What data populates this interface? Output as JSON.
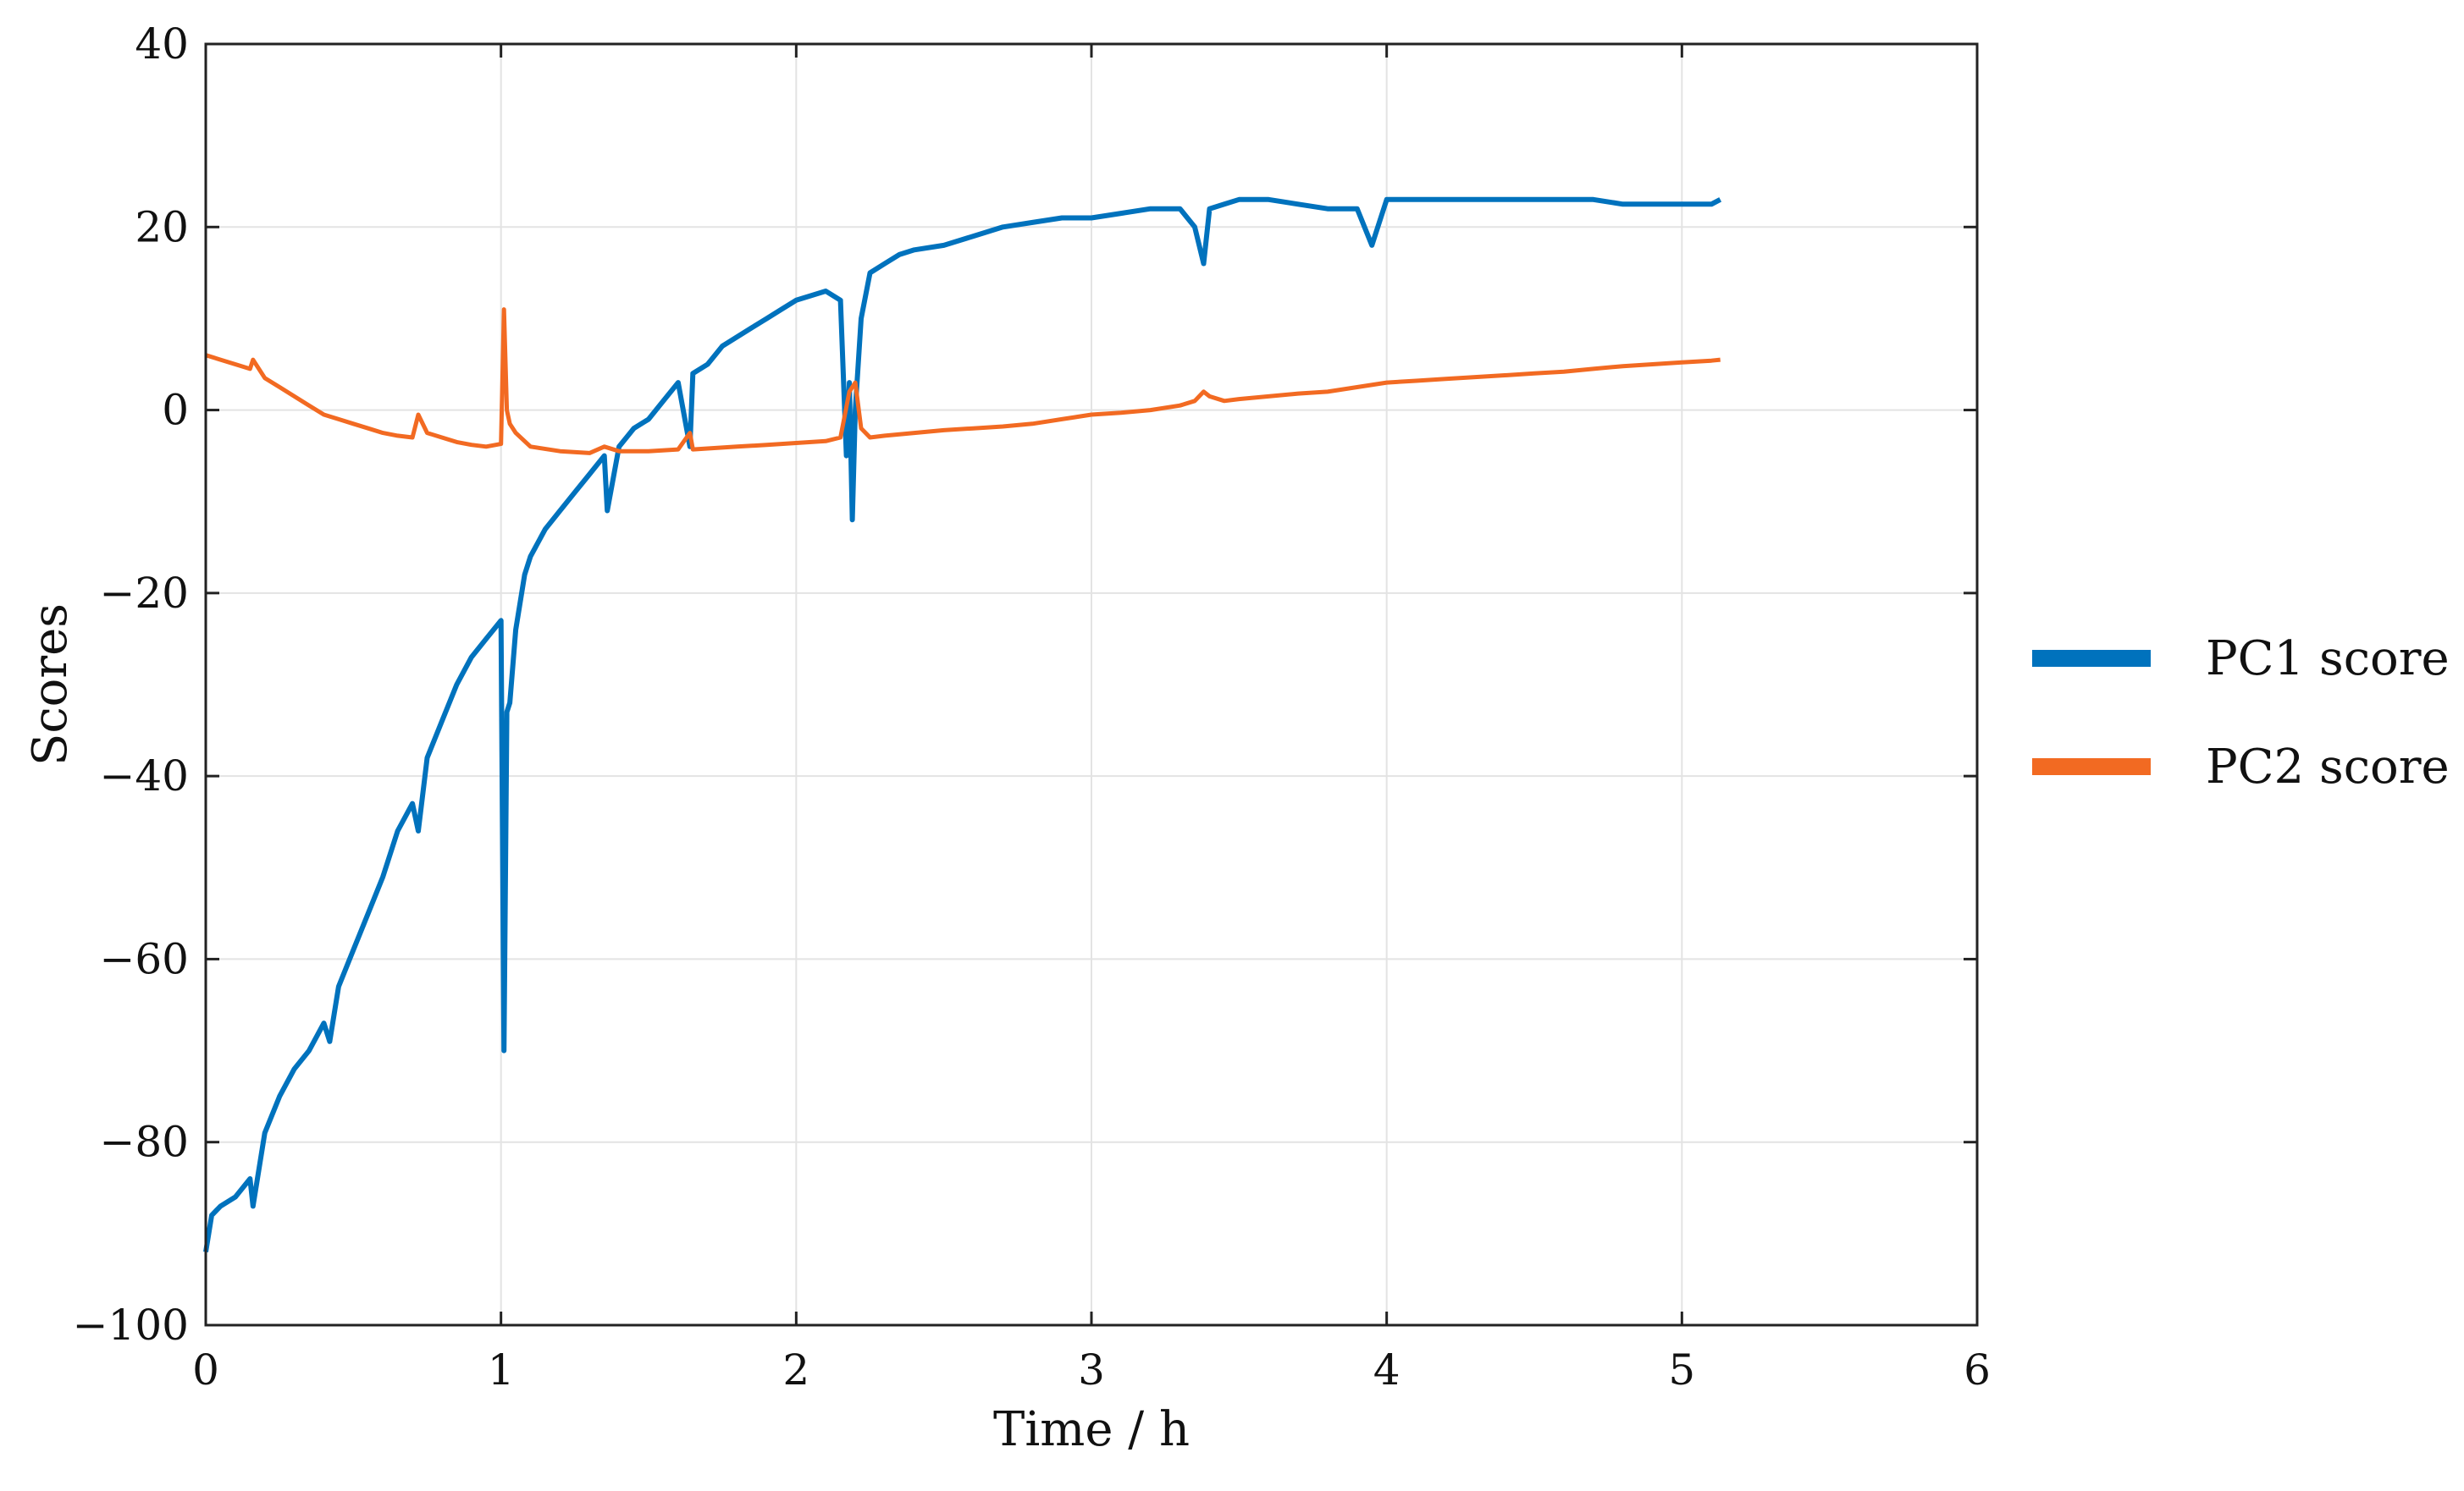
{
  "chart_data": {
    "type": "line",
    "title": "",
    "xlabel": "Time / h",
    "ylabel": "Scores",
    "xlim": [
      0,
      6
    ],
    "ylim": [
      -100,
      40
    ],
    "xticks": [
      0,
      1,
      2,
      3,
      4,
      5,
      6
    ],
    "yticks": [
      40,
      20,
      0,
      -20,
      -40,
      -60,
      -80,
      -100
    ],
    "xtick_labels": [
      "0",
      "1",
      "2",
      "3",
      "4",
      "5",
      "6"
    ],
    "ytick_labels": [
      "40",
      "20",
      "0",
      "−20",
      "−40",
      "−60",
      "−80",
      "−100"
    ],
    "grid": true,
    "legend_position": "right",
    "series": [
      {
        "name": "PC1 score",
        "color": "#0072BD",
        "x": [
          0,
          0.02,
          0.05,
          0.1,
          0.15,
          0.16,
          0.2,
          0.25,
          0.3,
          0.35,
          0.4,
          0.42,
          0.45,
          0.5,
          0.55,
          0.6,
          0.65,
          0.7,
          0.72,
          0.75,
          0.8,
          0.85,
          0.9,
          0.95,
          1.0,
          1.01,
          1.02,
          1.03,
          1.05,
          1.08,
          1.1,
          1.15,
          1.2,
          1.25,
          1.3,
          1.35,
          1.36,
          1.4,
          1.45,
          1.5,
          1.55,
          1.6,
          1.64,
          1.65,
          1.7,
          1.75,
          1.8,
          1.85,
          1.9,
          1.95,
          2.0,
          2.05,
          2.1,
          2.15,
          2.17,
          2.18,
          2.19,
          2.2,
          2.22,
          2.25,
          2.3,
          2.35,
          2.4,
          2.5,
          2.6,
          2.7,
          2.8,
          2.9,
          3.0,
          3.1,
          3.2,
          3.3,
          3.35,
          3.38,
          3.4,
          3.45,
          3.5,
          3.6,
          3.7,
          3.8,
          3.9,
          3.95,
          4.0,
          4.1,
          4.2,
          4.3,
          4.4,
          4.5,
          4.6,
          4.7,
          4.8,
          4.9,
          5.0,
          5.1,
          5.13
        ],
        "y": [
          -92,
          -88,
          -87,
          -86,
          -84,
          -87,
          -79,
          -75,
          -72,
          -70,
          -67,
          -69,
          -63,
          -59,
          -55,
          -51,
          -46,
          -43,
          -46,
          -38,
          -34,
          -30,
          -27,
          -25,
          -23,
          -70,
          -33,
          -32,
          -24,
          -18,
          -16,
          -13,
          -11,
          -9,
          -7,
          -5,
          -11,
          -4,
          -2,
          -1,
          1,
          3,
          -4,
          4,
          5,
          7,
          8,
          9,
          10,
          11,
          12,
          12.5,
          13,
          12,
          -5,
          3,
          -12,
          0,
          10,
          15,
          16,
          17,
          17.5,
          18,
          19,
          20,
          20.5,
          21,
          21,
          21.5,
          22,
          22,
          20,
          16,
          22,
          22.5,
          23,
          23,
          22.5,
          22,
          22,
          18,
          23,
          23,
          23,
          23,
          23,
          23,
          23,
          23,
          22.5,
          22.5,
          22.5,
          22.5,
          23
        ]
      },
      {
        "name": "PC2 score",
        "color": "#F26A22",
        "x": [
          0,
          0.05,
          0.1,
          0.15,
          0.16,
          0.2,
          0.25,
          0.3,
          0.35,
          0.4,
          0.45,
          0.5,
          0.55,
          0.6,
          0.65,
          0.7,
          0.72,
          0.75,
          0.8,
          0.85,
          0.9,
          0.95,
          1.0,
          1.01,
          1.02,
          1.03,
          1.05,
          1.1,
          1.2,
          1.3,
          1.35,
          1.4,
          1.5,
          1.6,
          1.64,
          1.65,
          1.7,
          1.8,
          1.9,
          2.0,
          2.1,
          2.15,
          2.18,
          2.2,
          2.22,
          2.25,
          2.3,
          2.4,
          2.5,
          2.6,
          2.7,
          2.8,
          2.9,
          3.0,
          3.1,
          3.2,
          3.3,
          3.35,
          3.38,
          3.4,
          3.45,
          3.5,
          3.6,
          3.7,
          3.8,
          3.9,
          4.0,
          4.1,
          4.2,
          4.3,
          4.4,
          4.5,
          4.6,
          4.7,
          4.8,
          4.9,
          5.0,
          5.1,
          5.13
        ],
        "y": [
          6,
          5.5,
          5,
          4.5,
          5.5,
          3.5,
          2.5,
          1.5,
          0.5,
          -0.5,
          -1,
          -1.5,
          -2,
          -2.5,
          -2.8,
          -3,
          -0.5,
          -2.5,
          -3,
          -3.5,
          -3.8,
          -4,
          -3.7,
          11,
          0,
          -1.5,
          -2.5,
          -4,
          -4.5,
          -4.7,
          -4,
          -4.5,
          -4.5,
          -4.3,
          -2.5,
          -4.3,
          -4.2,
          -4,
          -3.8,
          -3.6,
          -3.4,
          -3,
          2,
          3,
          -2,
          -3,
          -2.8,
          -2.5,
          -2.2,
          -2,
          -1.8,
          -1.5,
          -1,
          -0.5,
          -0.3,
          0,
          0.5,
          1,
          2,
          1.5,
          1,
          1.2,
          1.5,
          1.8,
          2,
          2.5,
          3,
          3.2,
          3.4,
          3.6,
          3.8,
          4,
          4.2,
          4.5,
          4.8,
          5,
          5.2,
          5.4,
          5.5
        ]
      }
    ]
  }
}
